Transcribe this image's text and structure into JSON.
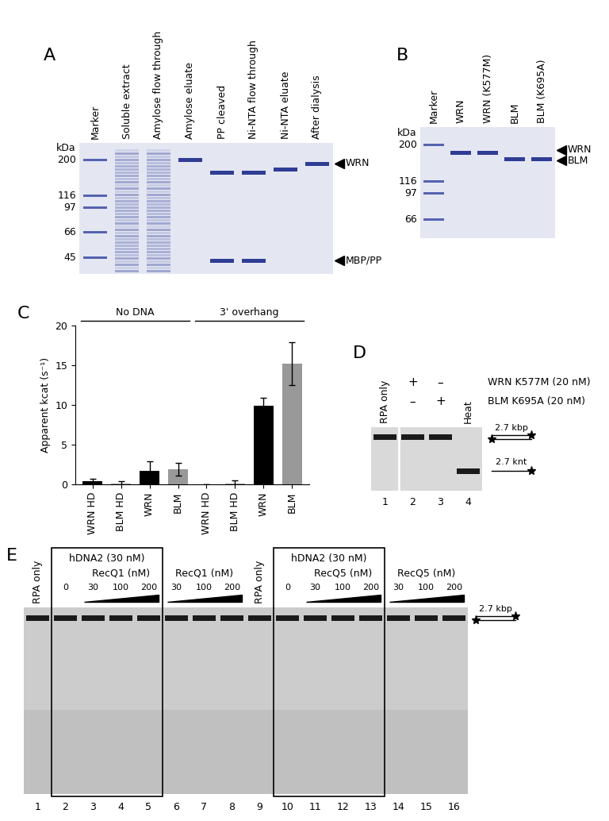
{
  "panel_A": {
    "label": "A",
    "unit": "kDa",
    "marker_kDa": [
      200,
      116,
      97,
      66,
      45
    ],
    "lanes": [
      {
        "name": "Marker",
        "marker": true,
        "bands_kDa": []
      },
      {
        "name": "Soluble extract",
        "smear": true,
        "bands_kDa": []
      },
      {
        "name": "Amylose flow through",
        "smear": true,
        "bands_kDa": []
      },
      {
        "name": "Amylose eluate",
        "bands_kDa": [
          200
        ]
      },
      {
        "name": "PP cleaved",
        "bands_kDa": [
          165,
          43
        ]
      },
      {
        "name": "Ni-NTA flow through",
        "bands_kDa": [
          165,
          43
        ]
      },
      {
        "name": "Ni-NTA eluate",
        "bands_kDa": [
          172
        ]
      },
      {
        "name": "After dialysis",
        "bands_kDa": [
          188
        ]
      }
    ],
    "arrows": [
      {
        "label": "WRN",
        "kDa": 190
      },
      {
        "label": "MBP/PP",
        "kDa": 43
      }
    ]
  },
  "panel_B": {
    "label": "B",
    "unit": "kDa",
    "marker_kDa": [
      200,
      116,
      97,
      66
    ],
    "lanes": [
      {
        "name": "Marker",
        "marker": true,
        "bands_kDa": []
      },
      {
        "name": "WRN",
        "bands_kDa": [
          178
        ]
      },
      {
        "name": "WRN (K577M)",
        "bands_kDa": [
          178
        ]
      },
      {
        "name": "BLM",
        "bands_kDa": [
          162
        ]
      },
      {
        "name": "BLM (K695A)",
        "bands_kDa": [
          162
        ]
      }
    ],
    "arrows": [
      {
        "label": "WRN",
        "kDa": 185
      },
      {
        "label": "BLM",
        "kDa": 158
      }
    ]
  },
  "panel_C": {
    "label": "C"
  },
  "chart_data": {
    "type": "bar",
    "categories": [
      "WRN HD",
      "BLM HD",
      "WRN",
      "BLM",
      "WRN HD",
      "BLM HD",
      "WRN",
      "BLM"
    ],
    "values": [
      0.4,
      0.1,
      1.7,
      1.9,
      0.0,
      0.1,
      9.9,
      15.2
    ],
    "errors": [
      0.3,
      0.3,
      1.2,
      0.8,
      0.0,
      0.4,
      1.0,
      2.7
    ],
    "colors": [
      "#000000",
      "#999999",
      "#000000",
      "#999999",
      "#000000",
      "#999999",
      "#000000",
      "#999999"
    ],
    "y_label": "Apparent kcat (s⁻¹)",
    "ylim": [
      0,
      20
    ],
    "yticks": [
      0,
      5,
      10,
      15,
      20
    ],
    "groups": [
      {
        "label": "No DNA",
        "count": 4
      },
      {
        "label": "3' overhang",
        "count": 4
      }
    ]
  },
  "panel_D": {
    "label": "D",
    "substrates": [
      {
        "name": "2.7 kbp",
        "strands": 2
      },
      {
        "name": "2.7 knt",
        "strands": 1
      }
    ],
    "lanes": [
      {
        "number": 1,
        "name": "RPA only",
        "bands": [
          "2.7 kbp"
        ]
      },
      {
        "number": 2,
        "bands": [
          "2.7 kbp"
        ]
      },
      {
        "number": 3,
        "bands": [
          "2.7 kbp"
        ]
      },
      {
        "number": 4,
        "name": "Heat",
        "bands": [
          "2.7 knt"
        ]
      }
    ],
    "conditions": [
      {
        "label": "WRN K577M (20 nM)",
        "marks": [
          null,
          "+",
          "–",
          null
        ]
      },
      {
        "label": "BLM K695A (20 nM)",
        "marks": [
          null,
          "–",
          "+",
          null
        ]
      }
    ]
  },
  "panel_E": {
    "label": "E",
    "substrates": [
      {
        "name": "2.7 kbp",
        "strands": 2
      }
    ],
    "lanes": [
      {
        "number": 1,
        "bands": [
          "2.7 kbp"
        ]
      },
      {
        "number": 2,
        "conc": 0,
        "bands": [
          "2.7 kbp"
        ]
      },
      {
        "number": 3,
        "conc": 30,
        "bands": [
          "2.7 kbp"
        ]
      },
      {
        "number": 4,
        "conc": 100,
        "bands": [
          "2.7 kbp"
        ]
      },
      {
        "number": 5,
        "conc": 200,
        "bands": [
          "2.7 kbp"
        ]
      },
      {
        "number": 6,
        "conc": 30,
        "bands": [
          "2.7 kbp"
        ]
      },
      {
        "number": 7,
        "conc": 100,
        "bands": [
          "2.7 kbp"
        ]
      },
      {
        "number": 8,
        "conc": 200,
        "bands": [
          "2.7 kbp"
        ]
      },
      {
        "number": 9,
        "bands": [
          "2.7 kbp"
        ]
      },
      {
        "number": 10,
        "conc": 0,
        "bands": [
          "2.7 kbp"
        ]
      },
      {
        "number": 11,
        "conc": 30,
        "bands": [
          "2.7 kbp"
        ]
      },
      {
        "number": 12,
        "conc": 100,
        "bands": [
          "2.7 kbp"
        ]
      },
      {
        "number": 13,
        "conc": 200,
        "bands": [
          "2.7 kbp"
        ]
      },
      {
        "number": 14,
        "conc": 30,
        "bands": [
          "2.7 kbp"
        ]
      },
      {
        "number": 15,
        "conc": 100,
        "bands": [
          "2.7 kbp"
        ]
      },
      {
        "number": 16,
        "conc": 200,
        "bands": [
          "2.7 kbp"
        ]
      }
    ],
    "labels": [
      {
        "text": "RPA only",
        "lane": 1
      },
      {
        "text": "RPA only",
        "lane": 9
      }
    ],
    "boxes": [
      {
        "text": "hDNA2 (30 nM)",
        "lanes": [
          2,
          5
        ]
      },
      {
        "text": "hDNA2 (30 nM)",
        "lanes": [
          10,
          13
        ]
      }
    ],
    "titrations": [
      {
        "text": "RecQ1 (nM)",
        "lanes": [
          3,
          5
        ]
      },
      {
        "text": "RecQ1 (nM)",
        "lanes": [
          6,
          8
        ]
      },
      {
        "text": "RecQ5 (nM)",
        "lanes": [
          11,
          13
        ]
      },
      {
        "text": "RecQ5 (nM)",
        "lanes": [
          14,
          16
        ]
      }
    ]
  }
}
